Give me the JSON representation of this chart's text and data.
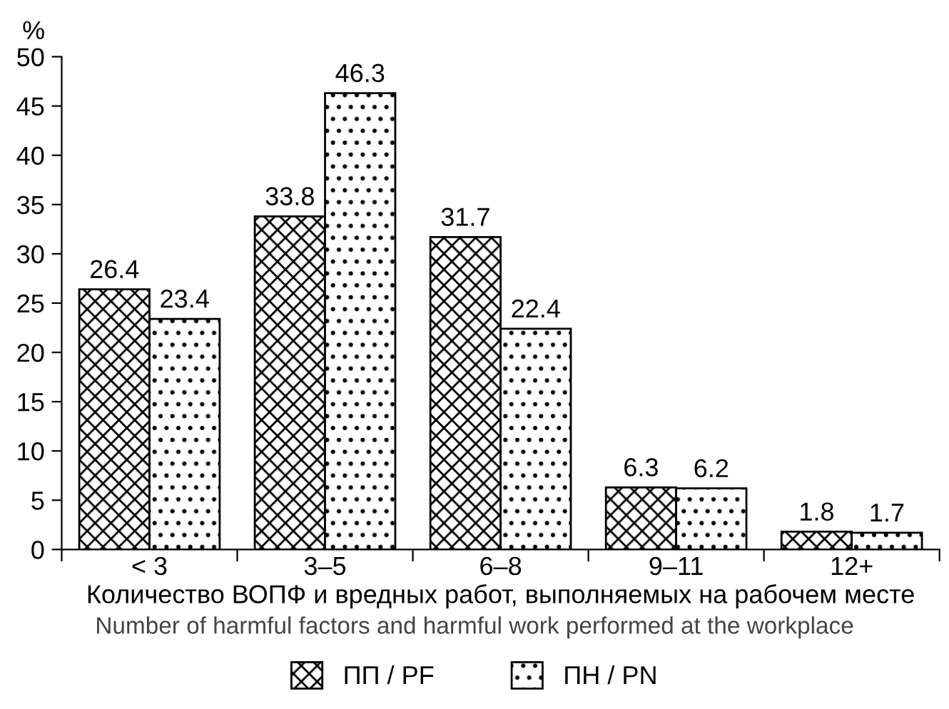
{
  "chart_data": {
    "type": "bar",
    "categories": [
      "< 3",
      "3–5",
      "6–8",
      "9–11",
      "12+"
    ],
    "series": [
      {
        "name": "ПП / PF",
        "color": "#000000",
        "values": [
          26.4,
          33.8,
          31.7,
          6.3,
          1.8
        ]
      },
      {
        "name": "ПН / PN",
        "color": "#000000",
        "values": [
          23.4,
          46.3,
          22.4,
          6.2,
          1.7
        ]
      }
    ],
    "ylabel": "%",
    "xlabel": "Количество ВОПФ и вредных работ, выполняемых на рабочем месте",
    "annotations": [
      "Number of harmful factors and harmful work performed at the workplace"
    ],
    "ylim": [
      0,
      50
    ],
    "yticks": [
      0,
      5,
      10,
      15,
      20,
      25,
      30,
      35,
      40,
      45,
      50
    ],
    "data_labels": true,
    "grid": false,
    "legend": "bottom"
  }
}
